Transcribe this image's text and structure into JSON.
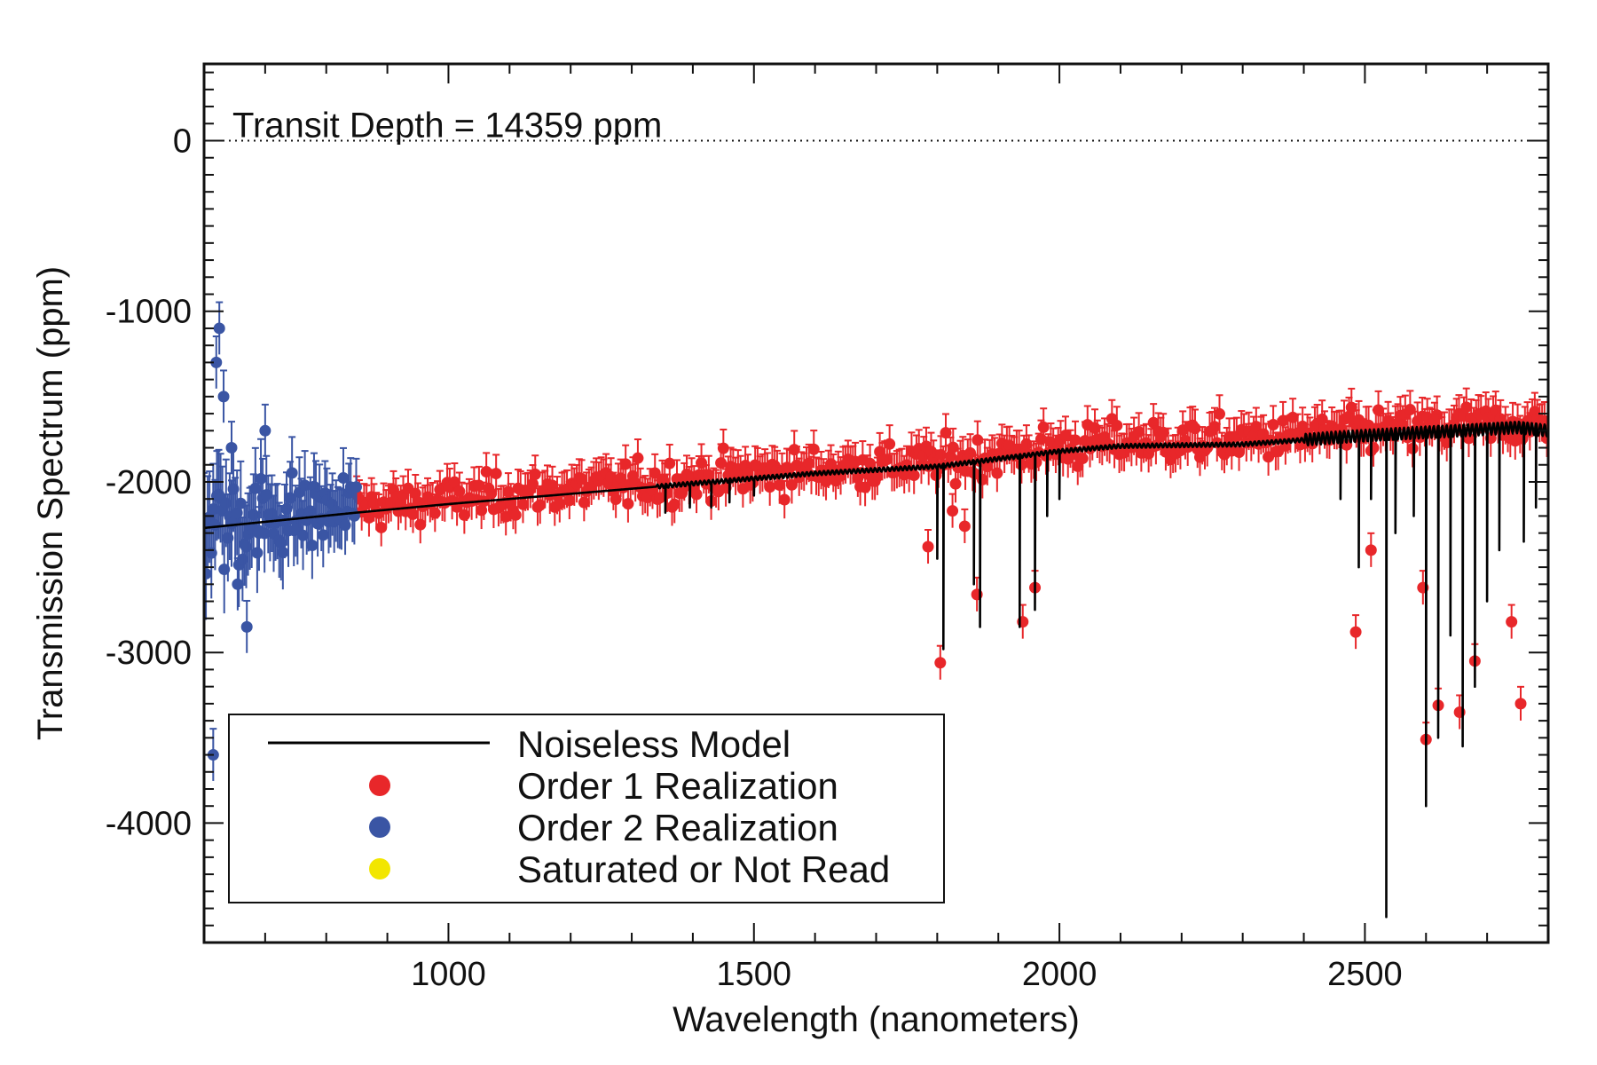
{
  "chart_data": {
    "type": "scatter",
    "title": "",
    "xlabel": "Wavelength (nanometers)",
    "ylabel": "Transmission Spectrum (ppm)",
    "xlim": [
      600,
      2800
    ],
    "ylim": [
      -4700,
      450
    ],
    "xticks": [
      1000,
      1500,
      2000,
      2500
    ],
    "xtick_labels": [
      "1000",
      "1500",
      "2000",
      "2500"
    ],
    "yticks": [
      0,
      -1000,
      -2000,
      -3000,
      -4000
    ],
    "ytick_labels": [
      "0",
      "-1000",
      "-2000",
      "-3000",
      "-4000"
    ],
    "grid": false,
    "legend_position": "bottom-left",
    "annotation": {
      "text": "Transit Depth =  14359 ppm",
      "reference_y": 0,
      "reference_line_style": "dotted"
    },
    "colors": {
      "model": "#000000",
      "order1": "#e8272a",
      "order2": "#3a55a4",
      "saturated": "#f2e600",
      "axis": "#111111"
    },
    "legend": [
      {
        "label": "Noiseless Model",
        "kind": "line",
        "color": "#000000"
      },
      {
        "label": "Order 1 Realization",
        "kind": "marker",
        "color": "#e8272a"
      },
      {
        "label": "Order 2 Realization",
        "kind": "marker",
        "color": "#3a55a4"
      },
      {
        "label": "Saturated or Not Read",
        "kind": "marker",
        "color": "#f2e600"
      }
    ],
    "series": [
      {
        "name": "Noiseless Model",
        "kind": "line",
        "color": "#000000",
        "baseline": {
          "x": [
            600,
            850,
            1000,
            1300,
            1600,
            1800,
            2000,
            2100,
            2300,
            2450,
            2550,
            2650,
            2750,
            2800
          ],
          "y": [
            -2270,
            -2180,
            -2130,
            -2040,
            -1950,
            -1910,
            -1820,
            -1790,
            -1780,
            -1740,
            -1720,
            -1700,
            -1680,
            -1700
          ]
        },
        "absorption_dips": {
          "x": [
            1355,
            1395,
            1430,
            1460,
            1500,
            1800,
            1810,
            1860,
            1870,
            1935,
            1960,
            1980,
            2000,
            2460,
            2490,
            2510,
            2535,
            2550,
            2580,
            2600,
            2620,
            2640,
            2660,
            2680,
            2700,
            2720,
            2760,
            2780
          ],
          "depth": [
            2180,
            2150,
            2150,
            2120,
            2080,
            2450,
            2980,
            2600,
            2850,
            2850,
            2750,
            2200,
            2100,
            2100,
            2500,
            2100,
            4550,
            2300,
            2200,
            3900,
            3500,
            2900,
            3550,
            3200,
            2700,
            2400,
            2350,
            2150
          ]
        }
      },
      {
        "name": "Order 1 Realization",
        "kind": "points",
        "color": "#e8272a",
        "x_range": [
          850,
          2800
        ],
        "spacing": 4,
        "error_bar": 110,
        "outliers": {
          "x": [
            1785,
            1805,
            1825,
            1845,
            1865,
            1940,
            1960,
            2485,
            2510,
            2595,
            2600,
            2620,
            2655,
            2680,
            2740,
            2755
          ],
          "y": [
            -2380,
            -3060,
            -2170,
            -2260,
            -2660,
            -2820,
            -2620,
            -2880,
            -2400,
            -2620,
            -3510,
            -3310,
            -3350,
            -3050,
            -2820,
            -3300
          ]
        }
      },
      {
        "name": "Order 2 Realization",
        "kind": "points",
        "color": "#3a55a4",
        "x_range": [
          600,
          850
        ],
        "spacing": 3,
        "error_bar": 170,
        "outliers": {
          "x": [
            615,
            620,
            625,
            632,
            645,
            655,
            670,
            690,
            700
          ],
          "y": [
            -3600,
            -1300,
            -1100,
            -1500,
            -1800,
            -2600,
            -2850,
            -2300,
            -1700
          ]
        }
      },
      {
        "name": "Saturated or Not Read",
        "kind": "points",
        "color": "#f2e600",
        "x": [],
        "y": []
      }
    ]
  }
}
